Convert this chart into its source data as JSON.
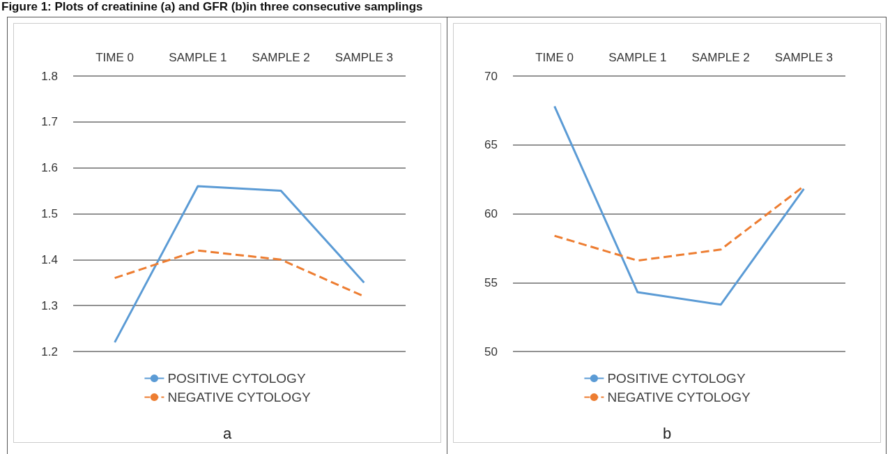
{
  "chart_data": [
    {
      "type": "line",
      "title": "Figure 1: Plots of creatinine (a) and GFR (b)in three consecutive samplings",
      "annotations": [
        "a"
      ],
      "categories": [
        "TIME 0",
        "SAMPLE 1",
        "SAMPLE 2",
        "SAMPLE 3"
      ],
      "series": [
        {
          "name": "POSITIVE CYTOLOGY",
          "color": "#5b9bd5",
          "values": [
            1.22,
            1.56,
            1.55,
            1.35
          ],
          "line_style": "solid"
        },
        {
          "name": "NEGATIVE CYTOLOGY",
          "color": "#ed7d31",
          "values": [
            1.36,
            1.42,
            1.4,
            1.32
          ],
          "line_style": "dashed"
        }
      ],
      "ylim": [
        1.2,
        1.8
      ],
      "yticks": [
        1.2,
        1.3,
        1.4,
        1.5,
        1.6,
        1.7,
        1.8
      ],
      "grid": "y",
      "legend": "bottom",
      "marker": "none"
    },
    {
      "type": "line",
      "annotations": [
        "b"
      ],
      "categories": [
        "TIME 0",
        "SAMPLE 1",
        "SAMPLE 2",
        "SAMPLE 3"
      ],
      "series": [
        {
          "name": "POSITIVE CYTOLOGY",
          "color": "#5b9bd5",
          "values": [
            67.8,
            54.3,
            53.4,
            61.8
          ],
          "line_style": "solid"
        },
        {
          "name": "NEGATIVE CYTOLOGY",
          "color": "#ed7d31",
          "values": [
            58.4,
            56.6,
            57.4,
            62.0
          ],
          "line_style": "dashed"
        }
      ],
      "ylim": [
        50,
        70
      ],
      "yticks": [
        50,
        55,
        60,
        65,
        70
      ],
      "grid": "y",
      "legend": "bottom",
      "marker": "none"
    }
  ]
}
